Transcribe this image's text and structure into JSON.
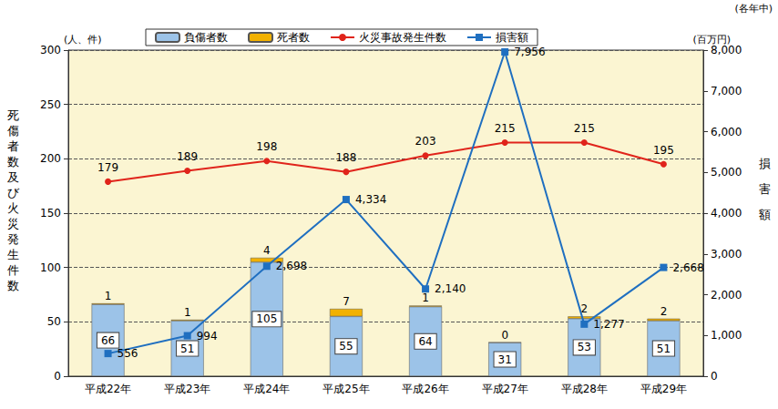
{
  "chart_data": {
    "type": "bar",
    "ylabel": "死傷者数及び火災発生件数",
    "y_unit": "(人、件)",
    "y2label": "損害額",
    "y2_unit": "(百万円)",
    "note": "(各年中)",
    "categories": [
      "平成22年",
      "平成23年",
      "平成24年",
      "平成25年",
      "平成26年",
      "平成27年",
      "平成28年",
      "平成29年"
    ],
    "series": [
      {
        "name": "負傷者数",
        "type": "bar",
        "color": "#9cc3e8",
        "stacked": true,
        "data_labels": true,
        "values": [
          66,
          51,
          105,
          55,
          64,
          31,
          53,
          51
        ]
      },
      {
        "name": "死者数",
        "type": "bar",
        "color": "#f2b100",
        "stacked": true,
        "data_labels": true,
        "values": [
          1,
          1,
          4,
          7,
          1,
          0,
          2,
          2
        ]
      },
      {
        "name": "火災事故発生件数",
        "type": "line",
        "color": "#e0241b",
        "marker": "circle",
        "data_labels": true,
        "values": [
          179,
          189,
          198,
          188,
          203,
          215,
          215,
          195
        ]
      },
      {
        "name": "損害額",
        "type": "line",
        "color": "#1f6fc0",
        "marker": "square",
        "axis": "y2",
        "data_labels": true,
        "values": [
          556,
          994,
          2698,
          4334,
          2140,
          7956,
          1277,
          2668
        ],
        "value_labels": [
          "556",
          "994",
          "2,698",
          "4,334",
          "2,140",
          "7,956",
          "1,277",
          "2,668"
        ]
      }
    ],
    "ylim": [
      0,
      300
    ],
    "yticks": [
      0,
      50,
      100,
      150,
      200,
      250,
      300
    ],
    "y2lim": [
      0,
      8000
    ],
    "y2ticks": [
      0,
      {
        "value": 1000,
        "label": "1,000"
      },
      {
        "value": 2000,
        "label": "2,000"
      },
      {
        "value": 3000,
        "label": "3,000"
      },
      {
        "value": 4000,
        "label": "4,000"
      },
      {
        "value": 5000,
        "label": "5,000"
      },
      {
        "value": 6000,
        "label": "6,000"
      },
      {
        "value": 7000,
        "label": "7,000"
      },
      {
        "value": 8000,
        "label": "8,000"
      }
    ],
    "grid": true,
    "legend": "top"
  }
}
